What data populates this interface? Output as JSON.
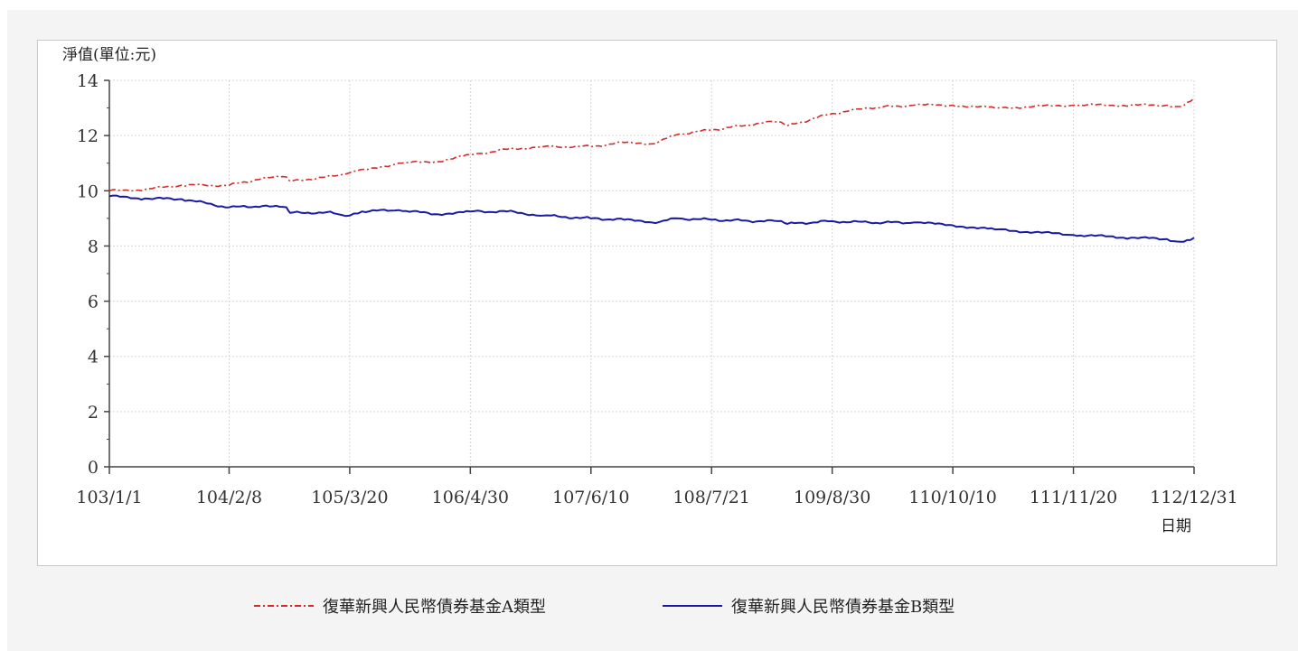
{
  "chart_data": {
    "type": "line",
    "ylabel": "淨值(單位:元)",
    "xlabel": "日期",
    "ylim": [
      0,
      14
    ],
    "yticks": [
      0,
      2,
      4,
      6,
      8,
      10,
      12,
      14
    ],
    "xticks": [
      "103/1/1",
      "104/2/8",
      "105/3/20",
      "106/4/30",
      "107/6/10",
      "108/7/21",
      "109/8/30",
      "110/10/10",
      "111/11/20",
      "112/12/31"
    ],
    "grid": true,
    "legend_position": "bottom",
    "x_domain": [
      "103/1/1",
      "112/12/31"
    ],
    "series": [
      {
        "name": "復華新興人民幣債券基金A類型",
        "color": "#d42a2a",
        "style": "dash-dot",
        "points": [
          [
            "103/1/1",
            10.0
          ],
          [
            "103/5/1",
            10.05
          ],
          [
            "103/9/1",
            10.2
          ],
          [
            "104/2/8",
            10.2
          ],
          [
            "104/6/1",
            10.45
          ],
          [
            "104/8/20",
            10.5
          ],
          [
            "104/9/1",
            10.35
          ],
          [
            "105/1/1",
            10.5
          ],
          [
            "105/3/20",
            10.65
          ],
          [
            "105/9/1",
            11.0
          ],
          [
            "106/1/1",
            11.05
          ],
          [
            "106/4/30",
            11.3
          ],
          [
            "106/9/1",
            11.5
          ],
          [
            "107/1/1",
            11.6
          ],
          [
            "107/6/10",
            11.6
          ],
          [
            "107/10/1",
            11.75
          ],
          [
            "108/1/1",
            11.7
          ],
          [
            "108/4/1",
            12.05
          ],
          [
            "108/7/21",
            12.2
          ],
          [
            "109/1/1",
            12.45
          ],
          [
            "109/3/1",
            12.5
          ],
          [
            "109/4/1",
            12.35
          ],
          [
            "109/8/30",
            12.8
          ],
          [
            "110/1/1",
            13.0
          ],
          [
            "110/6/1",
            13.1
          ],
          [
            "110/10/10",
            13.1
          ],
          [
            "111/3/1",
            13.0
          ],
          [
            "111/11/20",
            13.1
          ],
          [
            "112/6/1",
            13.1
          ],
          [
            "112/10/1",
            13.1
          ],
          [
            "112/11/15",
            13.05
          ],
          [
            "112/12/31",
            13.35
          ]
        ]
      },
      {
        "name": "復華新興人民幣債券基金B類型",
        "color": "#1a1aa6",
        "style": "solid",
        "points": [
          [
            "103/1/1",
            9.8
          ],
          [
            "103/5/1",
            9.72
          ],
          [
            "103/9/1",
            9.7
          ],
          [
            "104/2/8",
            9.4
          ],
          [
            "104/6/1",
            9.45
          ],
          [
            "104/8/20",
            9.4
          ],
          [
            "104/9/1",
            9.2
          ],
          [
            "105/1/1",
            9.22
          ],
          [
            "105/3/20",
            9.1
          ],
          [
            "105/5/1",
            9.25
          ],
          [
            "105/9/1",
            9.3
          ],
          [
            "106/1/1",
            9.15
          ],
          [
            "106/4/30",
            9.25
          ],
          [
            "106/9/1",
            9.25
          ],
          [
            "107/1/1",
            9.1
          ],
          [
            "107/6/10",
            9.0
          ],
          [
            "107/10/1",
            8.95
          ],
          [
            "108/1/1",
            8.85
          ],
          [
            "108/4/1",
            9.0
          ],
          [
            "108/7/21",
            8.95
          ],
          [
            "109/1/1",
            8.9
          ],
          [
            "109/3/1",
            8.9
          ],
          [
            "109/4/1",
            8.8
          ],
          [
            "109/8/30",
            8.9
          ],
          [
            "110/1/1",
            8.85
          ],
          [
            "110/6/1",
            8.85
          ],
          [
            "110/10/10",
            8.75
          ],
          [
            "111/3/1",
            8.6
          ],
          [
            "111/11/20",
            8.4
          ],
          [
            "112/6/1",
            8.3
          ],
          [
            "112/10/1",
            8.25
          ],
          [
            "112/11/15",
            8.15
          ],
          [
            "112/12/31",
            8.3
          ]
        ]
      }
    ]
  }
}
